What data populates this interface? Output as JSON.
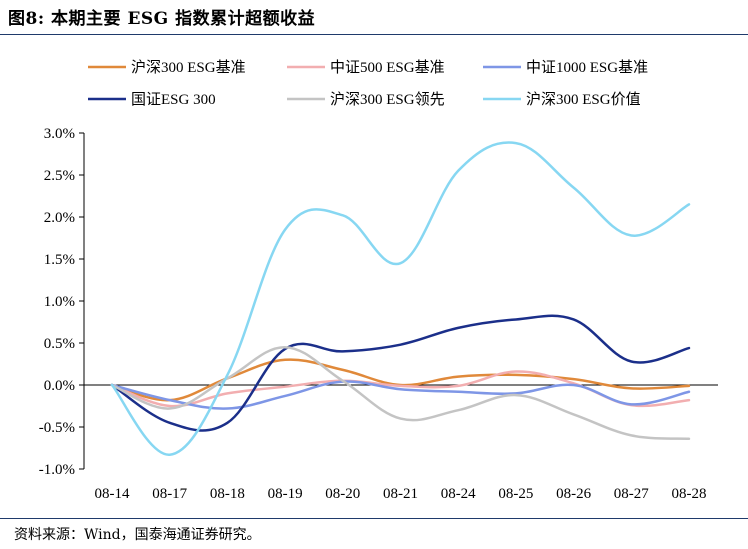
{
  "figure": {
    "title": "图8:  本期主要 ESG 指数累计超额收益",
    "source": "资料来源：Wind，国泰海通证券研究。"
  },
  "chart_data": {
    "type": "line",
    "x": [
      "08-14",
      "08-17",
      "08-18",
      "08-19",
      "08-20",
      "08-21",
      "08-24",
      "08-25",
      "08-26",
      "08-27",
      "08-28"
    ],
    "ylim": [
      -0.01,
      0.03
    ],
    "yticks": [
      -0.01,
      -0.005,
      0.0,
      0.005,
      0.01,
      0.015,
      0.02,
      0.025,
      0.03
    ],
    "ytick_labels": [
      "-1.0%",
      "-0.5%",
      "0.0%",
      "0.5%",
      "1.0%",
      "1.5%",
      "2.0%",
      "2.5%",
      "3.0%"
    ],
    "legend_position": "top",
    "grid": false,
    "series": [
      {
        "name": "沪深300 ESG基准",
        "color": "#e0893a",
        "values": [
          0.0,
          -0.0018,
          0.0008,
          0.003,
          0.0018,
          0.0,
          0.001,
          0.0012,
          0.0007,
          -0.0004,
          -0.0001
        ]
      },
      {
        "name": "中证500 ESG基准",
        "color": "#f2aeb0",
        "values": [
          0.0,
          -0.0025,
          -0.001,
          -0.0002,
          0.0005,
          -0.0001,
          -0.0001,
          0.0016,
          0.0002,
          -0.0024,
          -0.0018
        ]
      },
      {
        "name": "中证1000 ESG基准",
        "color": "#7e96e6",
        "values": [
          0.0,
          -0.0018,
          -0.0028,
          -0.0013,
          0.0004,
          -0.0005,
          -0.0008,
          -0.001,
          0.0,
          -0.0023,
          -0.0008
        ]
      },
      {
        "name": "国证ESG 300",
        "color": "#1b2f8a",
        "values": [
          0.0,
          -0.0045,
          -0.0045,
          0.0043,
          0.004,
          0.0048,
          0.0068,
          0.0078,
          0.0078,
          0.0028,
          0.0044
        ]
      },
      {
        "name": "沪深300 ESG领先",
        "color": "#c4c4c4",
        "values": [
          0.0,
          -0.0028,
          0.0008,
          0.0045,
          0.0005,
          -0.004,
          -0.003,
          -0.0012,
          -0.0035,
          -0.006,
          -0.0064
        ]
      },
      {
        "name": "沪深300 ESG价值",
        "color": "#87d7f2",
        "values": [
          0.0,
          -0.0083,
          0.0012,
          0.0185,
          0.0202,
          0.0145,
          0.0255,
          0.0288,
          0.0235,
          0.0178,
          0.0215
        ]
      }
    ]
  }
}
